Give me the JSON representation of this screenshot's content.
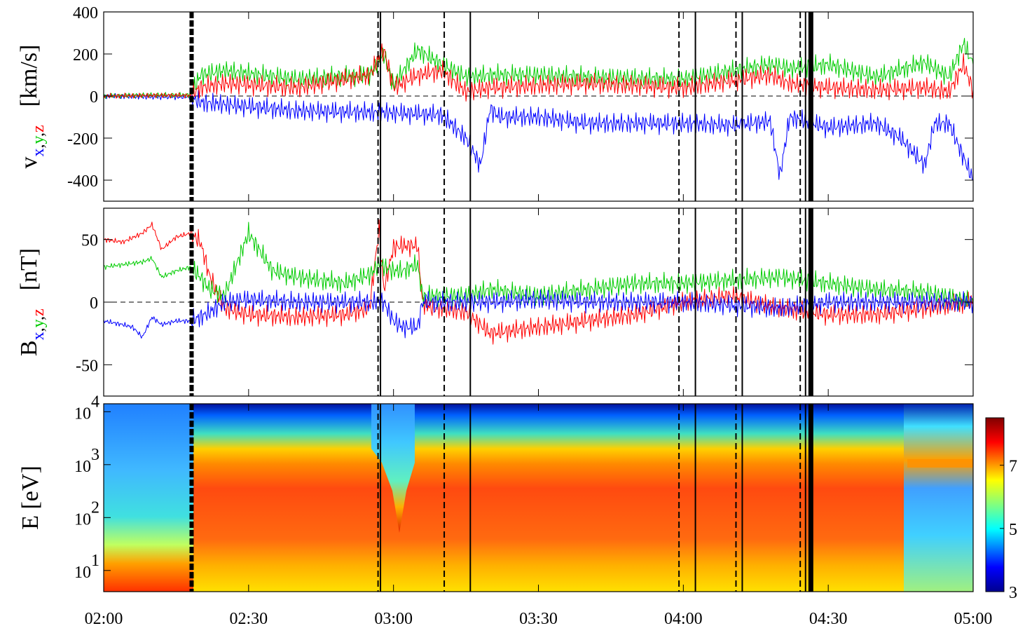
{
  "chart_data": [
    {
      "type": "line",
      "panel": "velocity",
      "ylabel_main": "v",
      "ylabel_subscripts": [
        {
          "text": "x",
          "color": "#0000ff"
        },
        {
          "text": ",",
          "color": "#000000"
        },
        {
          "text": "y",
          "color": "#00cc00"
        },
        {
          "text": ",",
          "color": "#000000"
        },
        {
          "text": "z",
          "color": "#ff0000"
        }
      ],
      "ylabel_unit": "[km/s]",
      "ylim": [
        -500,
        400
      ],
      "yticks": [
        400,
        200,
        0,
        -200,
        -400
      ],
      "ytick_labels": [
        "400",
        "200",
        "0",
        "-200",
        "-400"
      ],
      "zero_line": "dashed",
      "series": [
        {
          "color": "#0000ff",
          "x": [
            0,
            10,
            18,
            20,
            25,
            40,
            60,
            70,
            75,
            78,
            80,
            82,
            90,
            100,
            120,
            130,
            138,
            140,
            142,
            150,
            160,
            165,
            170,
            172,
            175,
            180
          ],
          "y": [
            0,
            -5,
            -5,
            -30,
            -40,
            -70,
            -80,
            -90,
            -200,
            -330,
            -60,
            -100,
            -100,
            -130,
            -130,
            -140,
            -120,
            -380,
            -100,
            -150,
            -130,
            -200,
            -330,
            -130,
            -130,
            -400
          ]
        },
        {
          "color": "#00cc00",
          "x": [
            0,
            10,
            18,
            20,
            25,
            40,
            55,
            58,
            60,
            65,
            70,
            75,
            80,
            90,
            100,
            120,
            138,
            142,
            150,
            160,
            170,
            175,
            178,
            180
          ],
          "y": [
            0,
            5,
            5,
            100,
            120,
            80,
            100,
            200,
            50,
            220,
            150,
            90,
            100,
            100,
            90,
            80,
            150,
            130,
            150,
            90,
            160,
            90,
            250,
            150
          ]
        },
        {
          "color": "#ff0000",
          "x": [
            0,
            10,
            18,
            20,
            25,
            40,
            55,
            58,
            60,
            65,
            70,
            75,
            80,
            90,
            100,
            120,
            138,
            142,
            150,
            160,
            170,
            175,
            178,
            180
          ],
          "y": [
            0,
            3,
            3,
            40,
            60,
            40,
            100,
            220,
            40,
            100,
            120,
            20,
            40,
            50,
            60,
            40,
            100,
            60,
            40,
            30,
            40,
            20,
            150,
            30
          ]
        }
      ]
    },
    {
      "type": "line",
      "panel": "magnetic_field",
      "ylabel_main": "B",
      "ylabel_subscripts": [
        {
          "text": "x",
          "color": "#0000ff"
        },
        {
          "text": ",",
          "color": "#000000"
        },
        {
          "text": "y",
          "color": "#00cc00"
        },
        {
          "text": ",",
          "color": "#000000"
        },
        {
          "text": "z",
          "color": "#ff0000"
        }
      ],
      "ylabel_unit": "[nT]",
      "ylim": [
        -75,
        75
      ],
      "yticks": [
        50,
        0,
        -50
      ],
      "ytick_labels": [
        "50",
        "0",
        "-50"
      ],
      "zero_line": "dashed",
      "series": [
        {
          "color": "#ff0000",
          "x": [
            0,
            4,
            8,
            10,
            12,
            15,
            18,
            20,
            22,
            25,
            30,
            40,
            50,
            55,
            57,
            58,
            60,
            62,
            65,
            66,
            68,
            70,
            75,
            80,
            90,
            100,
            110,
            120,
            130,
            140,
            150,
            160,
            170,
            180
          ],
          "y": [
            50,
            48,
            55,
            62,
            42,
            52,
            55,
            48,
            20,
            -5,
            -10,
            -12,
            -10,
            -5,
            58,
            10,
            44,
            45,
            45,
            0,
            -5,
            -5,
            -8,
            -25,
            -20,
            -15,
            -10,
            0,
            5,
            -5,
            -10,
            -10,
            -5,
            0
          ]
        },
        {
          "color": "#00cc00",
          "x": [
            0,
            4,
            8,
            10,
            12,
            15,
            18,
            20,
            22,
            25,
            30,
            35,
            40,
            50,
            55,
            57,
            60,
            62,
            65,
            66,
            70,
            75,
            80,
            90,
            100,
            110,
            120,
            140,
            150,
            160,
            170,
            180
          ],
          "y": [
            28,
            30,
            32,
            35,
            20,
            25,
            28,
            20,
            10,
            5,
            55,
            25,
            20,
            15,
            22,
            30,
            25,
            25,
            30,
            5,
            5,
            5,
            10,
            5,
            10,
            15,
            15,
            20,
            15,
            10,
            8,
            0
          ]
        },
        {
          "color": "#0000ff",
          "x": [
            0,
            4,
            6,
            8,
            10,
            12,
            15,
            18,
            20,
            22,
            25,
            30,
            40,
            50,
            55,
            58,
            60,
            62,
            65,
            66,
            70,
            80,
            90,
            100,
            120,
            140,
            150,
            160,
            170,
            180
          ],
          "y": [
            -15,
            -18,
            -20,
            -28,
            -12,
            -18,
            -15,
            -15,
            -12,
            -8,
            0,
            2,
            0,
            0,
            0,
            0,
            -15,
            -20,
            -20,
            0,
            0,
            0,
            2,
            0,
            0,
            -5,
            0,
            0,
            0,
            0
          ]
        }
      ]
    },
    {
      "type": "heatmap",
      "panel": "ion_energy_spectrogram",
      "ylabel": "E  [eV]",
      "y_scale": "log",
      "ylim_log10": [
        0.6,
        4.15
      ],
      "ytick_base_labels": [
        "10",
        "10",
        "10",
        "10"
      ],
      "ytick_exponents": [
        "1",
        "2",
        "3",
        "4"
      ],
      "colorbar_range": [
        3,
        8.5
      ],
      "colorbar_ticks": [
        "3",
        "5",
        "7"
      ],
      "colormap": "jet"
    }
  ],
  "x_axis": {
    "range_minutes": [
      0,
      180
    ],
    "tick_labels": [
      "02:00",
      "02:30",
      "03:00",
      "03:30",
      "04:00",
      "04:30",
      "05:00"
    ]
  },
  "event_lines": [
    {
      "t": 18.2,
      "style": "heavy-dashed"
    },
    {
      "t": 56.8,
      "style": "dashed"
    },
    {
      "t": 57.3,
      "style": "solid"
    },
    {
      "t": 70.5,
      "style": "dashed"
    },
    {
      "t": 75.9,
      "style": "solid"
    },
    {
      "t": 119.1,
      "style": "dashed"
    },
    {
      "t": 122.5,
      "style": "solid"
    },
    {
      "t": 130.9,
      "style": "dashed"
    },
    {
      "t": 132.2,
      "style": "solid"
    },
    {
      "t": 144.2,
      "style": "dashed"
    },
    {
      "t": 145.3,
      "style": "solid"
    },
    {
      "t": 146.4,
      "style": "thick-solid"
    }
  ]
}
